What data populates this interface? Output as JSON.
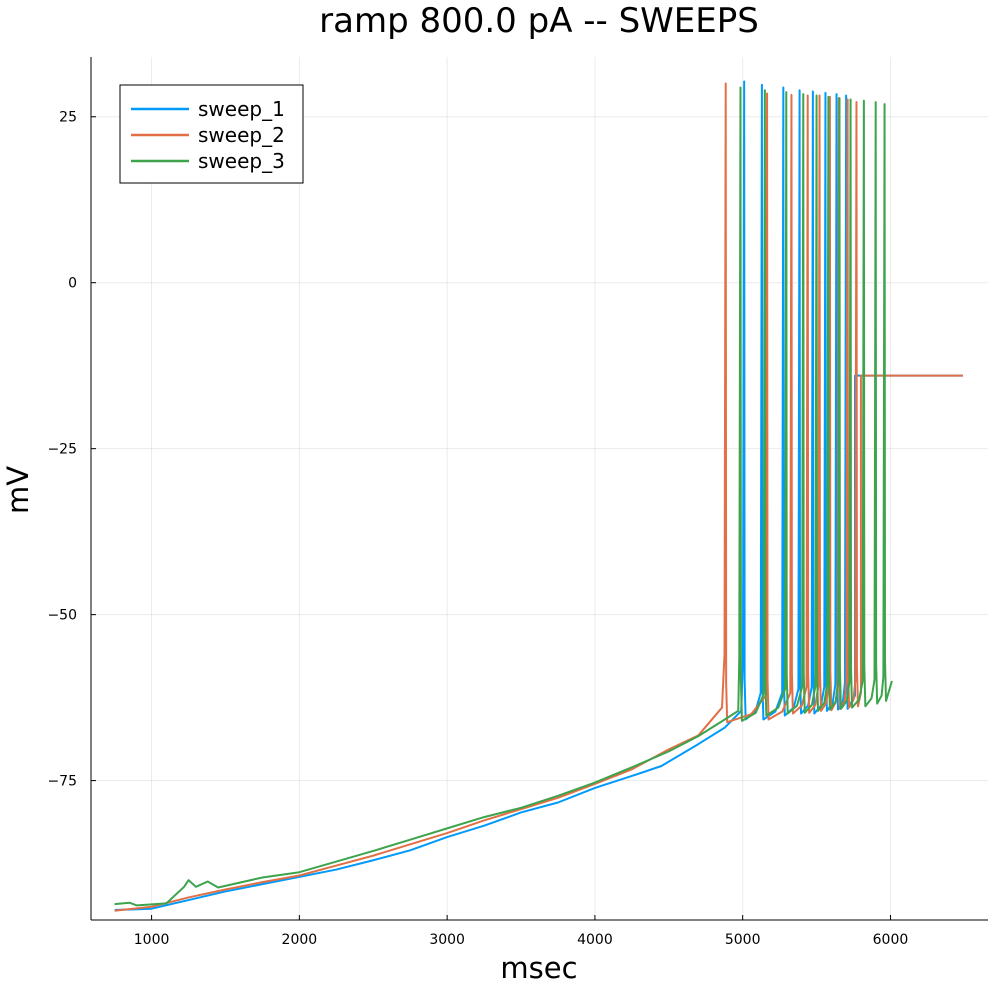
{
  "chart_data": {
    "type": "line",
    "title": "ramp 800.0 pA -- SWEEPS",
    "xlabel": "msec",
    "ylabel": "mV",
    "xlim": [
      590,
      6660
    ],
    "ylim": [
      -96,
      34
    ],
    "xticks": [
      1000,
      2000,
      3000,
      4000,
      5000,
      6000
    ],
    "yticks": [
      25,
      0,
      -25,
      -50,
      -75
    ],
    "grid": true,
    "legend_position": "top-left",
    "series": [
      {
        "name": "sweep_1",
        "color": "#009AFA",
        "baseline": [
          [
            750,
            -94.5
          ],
          [
            1000,
            -94.3
          ],
          [
            1250,
            -93
          ],
          [
            1500,
            -91.7
          ],
          [
            1750,
            -90.6
          ],
          [
            2000,
            -89.5
          ],
          [
            2250,
            -88.4
          ],
          [
            2500,
            -87
          ],
          [
            2750,
            -85.5
          ],
          [
            3000,
            -83.5
          ],
          [
            3250,
            -81.8
          ],
          [
            3500,
            -79.8
          ],
          [
            3750,
            -78.3
          ],
          [
            4000,
            -76.1
          ],
          [
            4250,
            -74.3
          ],
          [
            4450,
            -72.8
          ],
          [
            4700,
            -69.5
          ],
          [
            4880,
            -67
          ],
          [
            4990,
            -64.5
          ]
        ],
        "spike_times": [
          5010,
          5130,
          5275,
          5385,
          5475,
          5560,
          5635,
          5700
        ],
        "spike_peaks": [
          30.3,
          29.8,
          29.4,
          29.0,
          28.8,
          28.6,
          28.4,
          28.2
        ],
        "troughs": [
          -65.8,
          -65.8,
          -65.2,
          -64.9,
          -64.9,
          -64.5,
          -64.3,
          -64.2
        ],
        "end_time": 5760,
        "plateau": -14.0,
        "plateau_end": 6490
      },
      {
        "name": "sweep_2",
        "color": "#E26F46",
        "baseline": [
          [
            750,
            -94.6
          ],
          [
            1000,
            -94
          ],
          [
            1250,
            -92.6
          ],
          [
            1500,
            -91.4
          ],
          [
            1750,
            -90.3
          ],
          [
            2000,
            -89.3
          ],
          [
            2250,
            -87.8
          ],
          [
            2500,
            -86.3
          ],
          [
            2750,
            -84.6
          ],
          [
            3000,
            -82.9
          ],
          [
            3250,
            -81
          ],
          [
            3500,
            -79.3
          ],
          [
            3750,
            -77.6
          ],
          [
            4000,
            -75.5
          ],
          [
            4250,
            -73.3
          ],
          [
            4500,
            -70.3
          ],
          [
            4700,
            -68.2
          ],
          [
            4860,
            -64
          ]
        ],
        "spike_times": [
          4885,
          5165,
          5330,
          5440,
          5520,
          5590,
          5650,
          5710,
          5770
        ],
        "spike_peaks": [
          30.0,
          28.5,
          28.3,
          28.2,
          28.2,
          28.0,
          27.8,
          27.6,
          27.2
        ],
        "troughs": [
          -66.2,
          -65.8,
          -64.9,
          -64.8,
          -64.5,
          -64.4,
          -64.2,
          -64.0,
          -63.8
        ],
        "end_time": 5800,
        "plateau": -14.0,
        "plateau_end": 6490
      },
      {
        "name": "sweep_3",
        "color": "#3DA44D",
        "baseline": [
          [
            750,
            -93.6
          ],
          [
            850,
            -93.4
          ],
          [
            900,
            -93.8
          ],
          [
            1100,
            -93.5
          ],
          [
            1220,
            -91
          ],
          [
            1250,
            -90
          ],
          [
            1300,
            -91
          ],
          [
            1380,
            -90.2
          ],
          [
            1450,
            -91.1
          ],
          [
            1750,
            -89.6
          ],
          [
            2000,
            -88.8
          ],
          [
            2250,
            -87.2
          ],
          [
            2500,
            -85.6
          ],
          [
            2750,
            -83.9
          ],
          [
            3000,
            -82.2
          ],
          [
            3250,
            -80.5
          ],
          [
            3500,
            -79.1
          ],
          [
            3750,
            -77.3
          ],
          [
            4000,
            -75.3
          ],
          [
            4250,
            -73
          ],
          [
            4500,
            -70.6
          ],
          [
            4700,
            -68.3
          ],
          [
            4900,
            -65.5
          ],
          [
            4970,
            -64.5
          ]
        ],
        "spike_times": [
          4985,
          5150,
          5295,
          5410,
          5500,
          5580,
          5655,
          5730,
          5820,
          5900,
          5960
        ],
        "spike_peaks": [
          29.4,
          29.0,
          28.7,
          28.4,
          28.2,
          28.0,
          27.8,
          27.6,
          27.4,
          27.2,
          26.9
        ],
        "troughs": [
          -66.0,
          -65.2,
          -64.9,
          -64.8,
          -64.5,
          -64.3,
          -64.2,
          -64.0,
          -63.8,
          -63.4,
          -63.0
        ],
        "end_time": 6010,
        "end_value": -60.0
      }
    ]
  }
}
